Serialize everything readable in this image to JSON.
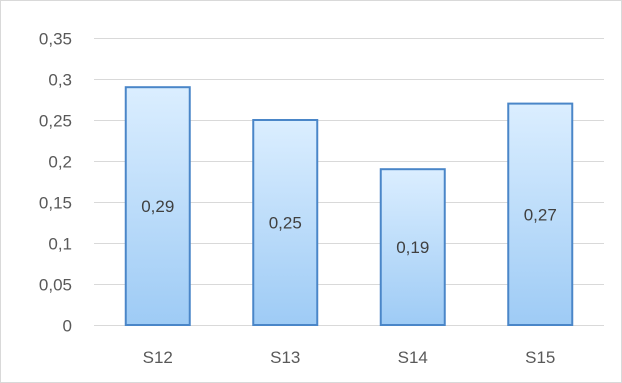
{
  "chart_data": {
    "type": "bar",
    "categories": [
      "S12",
      "S13",
      "S14",
      "S15"
    ],
    "values": [
      0.29,
      0.25,
      0.19,
      0.27
    ],
    "data_labels": [
      "0,29",
      "0,25",
      "0,19",
      "0,27"
    ],
    "y_ticks": [
      0,
      0.05,
      0.1,
      0.15,
      0.2,
      0.25,
      0.3,
      0.35
    ],
    "y_tick_labels": [
      "0",
      "0,05",
      "0,1",
      "0,15",
      "0,2",
      "0,25",
      "0,3",
      "0,35"
    ],
    "ylim": [
      0,
      0.35
    ],
    "grid": true,
    "legend": "none",
    "colors": {
      "bar_fill_top": "#dbeeff",
      "bar_fill_bottom": "#9ecbf5",
      "bar_border": "#4a86c8",
      "grid": "#d9d9d9"
    }
  }
}
